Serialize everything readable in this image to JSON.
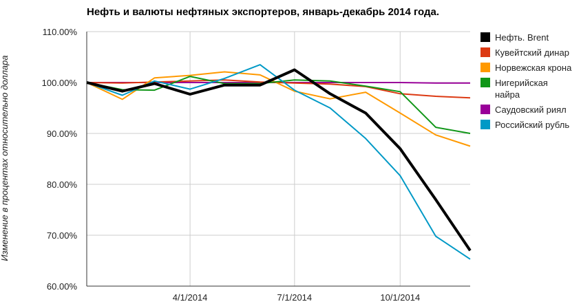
{
  "chart_data": {
    "type": "line",
    "title": "Нефть и валюты нефтяных экспортеров, январь-декабрь 2014 года.",
    "xlabel": "",
    "ylabel": "Изменение в процентах относительно доллара",
    "x": [
      "2014-01-01",
      "2014-02-01",
      "2014-03-01",
      "2014-04-01",
      "2014-05-01",
      "2014-06-01",
      "2014-07-01",
      "2014-08-01",
      "2014-09-01",
      "2014-10-01",
      "2014-11-01",
      "2014-12-01"
    ],
    "x_ticks": [
      {
        "x": "2014-04-01",
        "label": "4/1/2014"
      },
      {
        "x": "2014-07-01",
        "label": "7/1/2014"
      },
      {
        "x": "2014-10-01",
        "label": "10/1/2014"
      }
    ],
    "ylim": [
      60,
      110
    ],
    "y_ticks": [
      {
        "value": 60,
        "label": "60.00%"
      },
      {
        "value": 70,
        "label": "70.00%"
      },
      {
        "value": 80,
        "label": "80.00%"
      },
      {
        "value": 90,
        "label": "90.00%"
      },
      {
        "value": 100,
        "label": "100.00%"
      },
      {
        "value": 110,
        "label": "110.00%"
      }
    ],
    "grid": true,
    "legend": "right",
    "series": [
      {
        "name": "Нефть. Brent",
        "color": "#000000",
        "width": 4,
        "values": [
          100,
          98.3,
          99.8,
          97.7,
          99.5,
          99.5,
          102.5,
          97.8,
          94.0,
          87.0,
          77.0,
          67.0
        ]
      },
      {
        "name": "Кувейтский динар",
        "color": "#dc3912",
        "width": 2,
        "values": [
          100,
          99.9,
          100.1,
          100.3,
          100.5,
          100.1,
          99.9,
          99.7,
          99.2,
          97.8,
          97.3,
          97.0
        ]
      },
      {
        "name": "Норвежская крона",
        "color": "#ff9900",
        "width": 2,
        "values": [
          100,
          96.7,
          100.9,
          101.4,
          102.1,
          101.5,
          98.3,
          96.8,
          98.1,
          94.0,
          89.7,
          87.5
        ]
      },
      {
        "name": "Нигерийская\nнайра",
        "color": "#109618",
        "width": 2,
        "values": [
          100,
          98.6,
          98.5,
          101.2,
          99.8,
          99.8,
          100.5,
          100.3,
          99.3,
          98.2,
          91.2,
          90.0
        ]
      },
      {
        "name": "Саудовский риял",
        "color": "#990099",
        "width": 2,
        "values": [
          100,
          100,
          100,
          100,
          100,
          100,
          100,
          100,
          100,
          100,
          99.9,
          99.9
        ]
      },
      {
        "name": "Российский рубль",
        "color": "#0099c6",
        "width": 2,
        "values": [
          100,
          97.5,
          100.3,
          98.7,
          100.8,
          103.5,
          98.5,
          95.0,
          89.0,
          81.7,
          69.8,
          65.3
        ]
      }
    ]
  }
}
